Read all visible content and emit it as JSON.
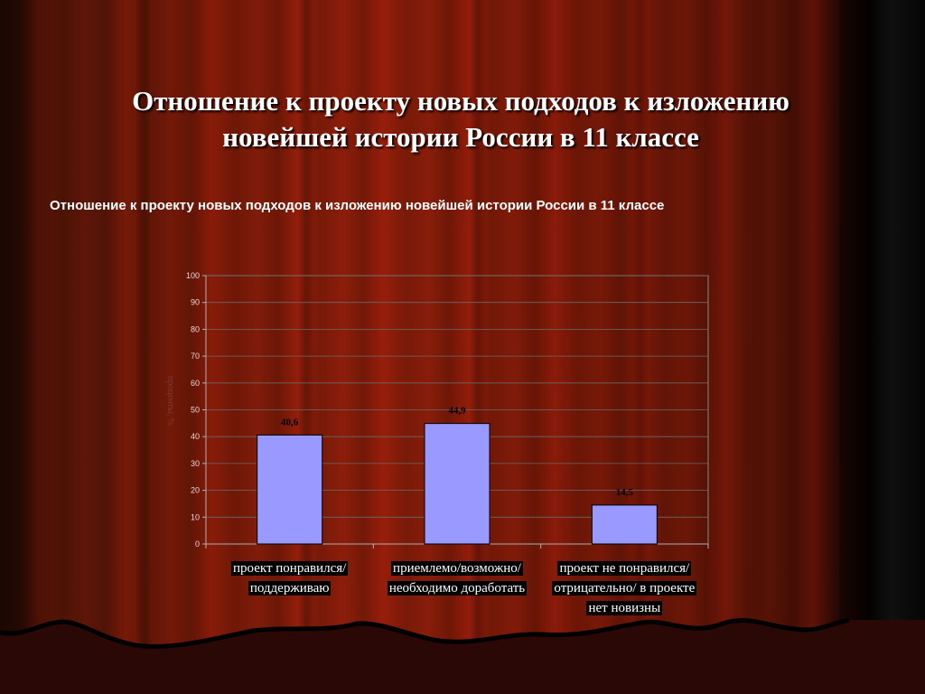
{
  "slide": {
    "title_line1": "Отношение к проекту новых подходов к изложению",
    "title_line2": "новейшей истории России в 11 классе"
  },
  "chart_data": {
    "type": "bar",
    "title": "Отношение к проекту новых подходов к изложению  новейшей истории России в 11 классе",
    "categories": [
      [
        "проект понравился/",
        "поддерживаю"
      ],
      [
        "приемлемо/возможно/",
        "необходимо доработать"
      ],
      [
        "проект не понравился/",
        "отрицательно/ в проекте",
        "нет новизны"
      ]
    ],
    "values": [
      40.6,
      44.9,
      14.5
    ],
    "value_labels": [
      "40,6",
      "44,9",
      "14,5"
    ],
    "ylabel": "проценты, %",
    "ylim": [
      0,
      100
    ],
    "yticks": [
      0,
      10,
      20,
      30,
      40,
      50,
      60,
      70,
      80,
      90,
      100
    ],
    "grid": true,
    "bar_color": "#9999ff",
    "label_color": "#000000"
  }
}
